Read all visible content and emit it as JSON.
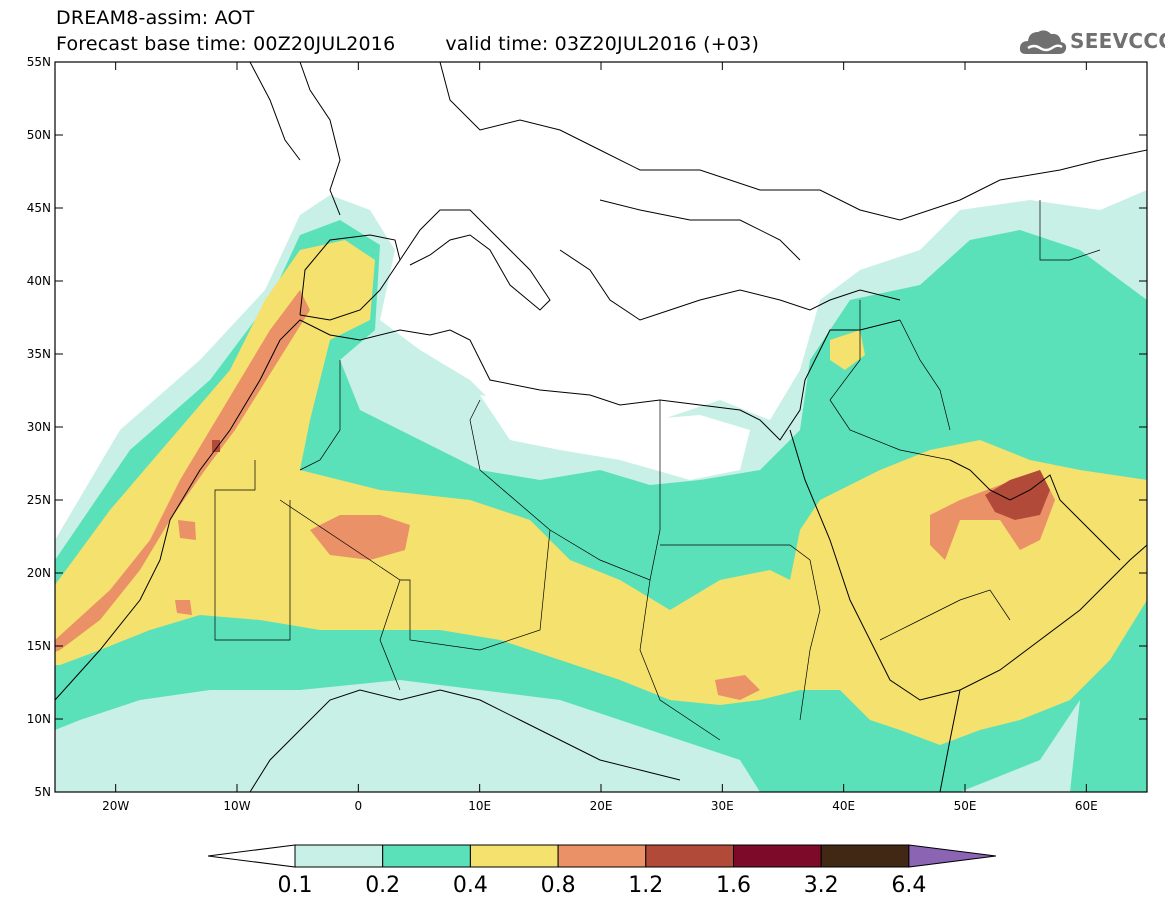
{
  "header": {
    "title": "DREAM8-assim: AOT",
    "base_time": "Forecast base time: 00Z20JUL2016",
    "valid_time": "valid time: 03Z20JUL2016 (+03)"
  },
  "logo": {
    "text": "SEEVCCC",
    "icon": "cloud-icon",
    "color": "#707070"
  },
  "map": {
    "lon_range": [
      -25,
      65
    ],
    "lat_range": [
      5,
      55
    ],
    "lon_ticks": [
      {
        "value": -20,
        "label": "20W"
      },
      {
        "value": -10,
        "label": "10W"
      },
      {
        "value": 0,
        "label": "0"
      },
      {
        "value": 10,
        "label": "10E"
      },
      {
        "value": 20,
        "label": "20E"
      },
      {
        "value": 30,
        "label": "30E"
      },
      {
        "value": 40,
        "label": "40E"
      },
      {
        "value": 50,
        "label": "50E"
      },
      {
        "value": 60,
        "label": "60E"
      }
    ],
    "lat_ticks": [
      {
        "value": 55,
        "label": "55N"
      },
      {
        "value": 50,
        "label": "50N"
      },
      {
        "value": 45,
        "label": "45N"
      },
      {
        "value": 40,
        "label": "40N"
      },
      {
        "value": 35,
        "label": "35N"
      },
      {
        "value": 30,
        "label": "30N"
      },
      {
        "value": 25,
        "label": "25N"
      },
      {
        "value": 20,
        "label": "20N"
      },
      {
        "value": 15,
        "label": "15N"
      },
      {
        "value": 10,
        "label": "10N"
      },
      {
        "value": 5,
        "label": "5N"
      }
    ]
  },
  "colorbar": {
    "colors": [
      "#ffffff",
      "#c8f0e6",
      "#5ae1b9",
      "#f5e16e",
      "#eb9168",
      "#b24a3a",
      "#7d0a28",
      "#412814",
      "#8c64b4"
    ],
    "labels": [
      "0.1",
      "0.2",
      "0.4",
      "0.8",
      "1.2",
      "1.6",
      "3.2",
      "6.4"
    ]
  }
}
